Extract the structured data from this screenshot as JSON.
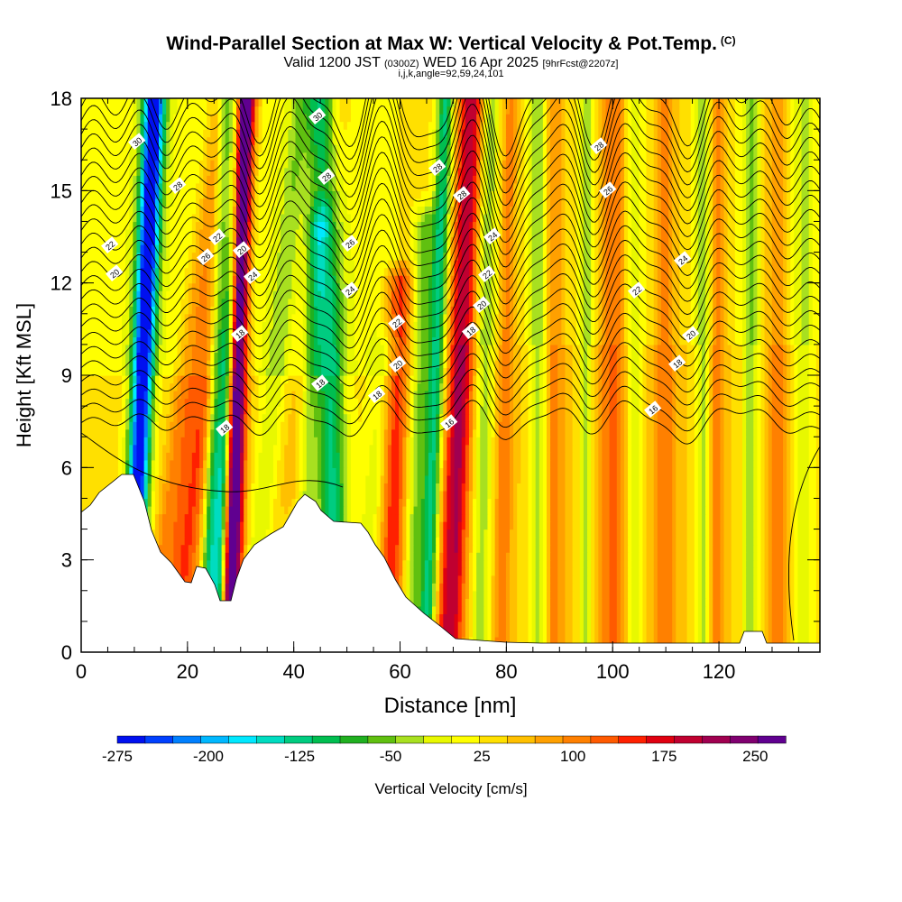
{
  "title": "Wind-Parallel Section at Max W: Vertical Velocity & Pot.Temp.",
  "title_mark": "(C)",
  "subtitle_main": "Valid 1200 JST",
  "subtitle_utc": "(0300Z)",
  "subtitle_date": "WED 16 Apr 2025",
  "subtitle_fcst": "[9hrFcst@2207z]",
  "params": "i,j,k,angle=92,59,24,101",
  "colors": {
    "terrain": "#ffffff",
    "contour": "#000000",
    "frame": "#000000"
  },
  "chart_data": {
    "type": "heatmap",
    "xlabel": "Distance [nm]",
    "ylabel": "Height [Kft MSL]",
    "xlim": [
      0,
      139
    ],
    "ylim": [
      0,
      18
    ],
    "x_ticks": [
      "0",
      "20",
      "40",
      "60",
      "80",
      "100",
      "120"
    ],
    "y_ticks": [
      "0",
      "3",
      "6",
      "9",
      "12",
      "15",
      "18"
    ],
    "colorbar": {
      "label": "Vertical Velocity [cm/s]",
      "range": [
        -275,
        275
      ],
      "tick_labels": [
        "-275",
        "-200",
        "-125",
        "-50",
        "25",
        "100",
        "175",
        "250"
      ],
      "colors": [
        "#0010f0",
        "#0040ff",
        "#0080ff",
        "#00b8ff",
        "#00e8ff",
        "#00dcc0",
        "#00cc80",
        "#00be50",
        "#20b020",
        "#60c010",
        "#a8e020",
        "#e8f800",
        "#ffff00",
        "#ffe000",
        "#ffc000",
        "#ffa000",
        "#ff8000",
        "#ff5a00",
        "#ff2000",
        "#e00010",
        "#c00030",
        "#a00050",
        "#800070",
        "#600090"
      ]
    },
    "vertical_velocity_features": [
      {
        "type": "downdraft",
        "x": 11,
        "w": -275
      },
      {
        "type": "updraft",
        "x": 29,
        "w": 250
      },
      {
        "type": "downdraft",
        "x": 25,
        "w": -200
      },
      {
        "type": "downdraft",
        "x": 46,
        "w": -200
      },
      {
        "type": "updraft",
        "x": 71,
        "w": 175
      },
      {
        "type": "downdraft",
        "x": 66,
        "w": -160
      },
      {
        "type": "updraft",
        "x": 59,
        "w": 130
      },
      {
        "type": "updraft",
        "x": 17,
        "w": 120
      }
    ],
    "theta_contour_labels": [
      "30",
      "28",
      "22",
      "20",
      "26",
      "24",
      "22",
      "20",
      "18",
      "18",
      "30",
      "28",
      "26",
      "24",
      "18",
      "18",
      "22",
      "20",
      "28",
      "28",
      "24",
      "22",
      "20",
      "18",
      "16",
      "28",
      "26",
      "24",
      "22",
      "20",
      "18",
      "16"
    ]
  }
}
